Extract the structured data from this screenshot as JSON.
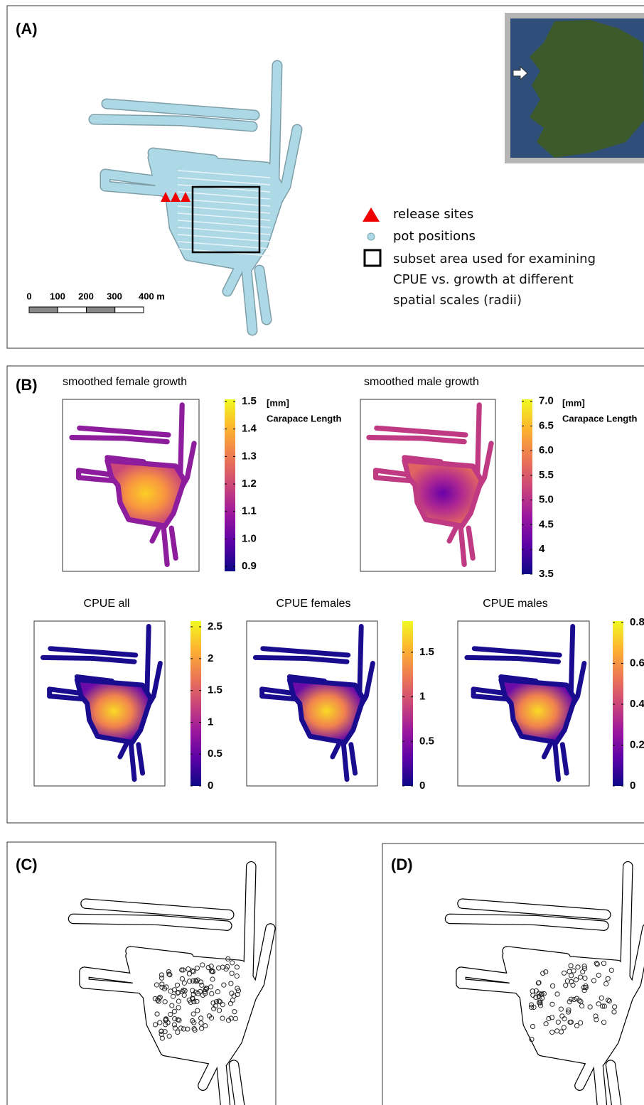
{
  "panel_a": {
    "label": "(A)",
    "scale_bar": {
      "labels": [
        "0",
        "100",
        "200",
        "300",
        "400 m"
      ]
    },
    "legend": [
      {
        "label": "release sites"
      },
      {
        "label": "pot positions"
      },
      {
        "label": "subset area used for examining CPUE vs. growth at different spatial scales (radii)"
      }
    ]
  },
  "panel_b": {
    "label": "(B)",
    "maps": [
      {
        "title": "smoothed female growth",
        "unit": "[mm]",
        "unit_label": "Carapace Length",
        "colorbar": {
          "lim": [
            0.882,
            1.508
          ],
          "ticks": [
            0.9,
            {
              "value": 1,
              "label": "1.0"
            },
            1.1,
            1.2,
            1.3,
            1.4,
            1.5
          ]
        }
      },
      {
        "title": "smoothed male growth",
        "unit": "[mm]",
        "unit_label": "Carapace Length",
        "colorbar": {
          "lim": [
            3.5,
            7.04
          ],
          "ticks": [
            3.5,
            4,
            4.5,
            {
              "value": 5,
              "label": "5.0"
            },
            5.5,
            {
              "value": 6,
              "label": "6.0"
            },
            6.5,
            {
              "value": 7,
              "label": "7.0"
            }
          ]
        }
      },
      {
        "title": "CPUE all",
        "colorbar": {
          "lim": [
            0,
            2.59
          ],
          "ticks": [
            0,
            0.5,
            1,
            1.5,
            2,
            2.5
          ]
        }
      },
      {
        "title": "CPUE females",
        "colorbar": {
          "lim": [
            0,
            1.85
          ],
          "ticks": [
            0,
            0.5,
            1,
            1.5
          ]
        }
      },
      {
        "title": "CPUE males",
        "colorbar": {
          "lim": [
            0,
            0.807
          ],
          "ticks": [
            0,
            0.2,
            0.4,
            0.6,
            0.8
          ]
        }
      }
    ]
  },
  "panel_c": {
    "label": "(C)"
  },
  "panel_d": {
    "label": "(D)"
  }
}
